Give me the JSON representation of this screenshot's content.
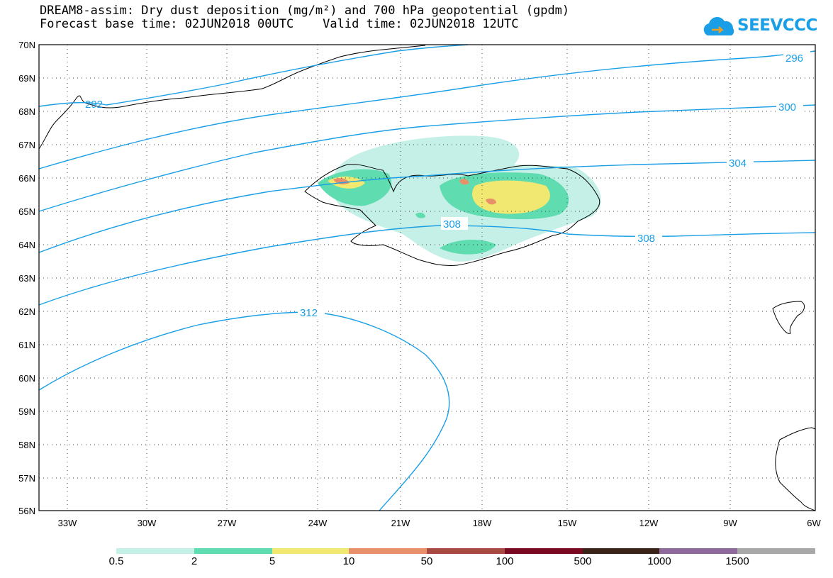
{
  "header": {
    "title_line1": "DREAM8-assim: Dry dust deposition (mg/m²) and 700 hPa geopotential (gpdm)",
    "title_line2": "Forecast base time: 02JUN2018 00UTC    Valid time: 02JUN2018 12UTC"
  },
  "logo": {
    "text": "SEEVCCC",
    "icon": "cloud-icon",
    "color": "#1a9fe6"
  },
  "map": {
    "lat_labels": [
      "70N",
      "69N",
      "68N",
      "67N",
      "66N",
      "65N",
      "64N",
      "63N",
      "62N",
      "61N",
      "60N",
      "59N",
      "58N",
      "57N",
      "56N"
    ],
    "lon_labels": [
      "33W",
      "30W",
      "27W",
      "24W",
      "21W",
      "18W",
      "15W",
      "12W",
      "9W",
      "6W"
    ],
    "contour_labels": [
      "296",
      "300",
      "304",
      "308",
      "308",
      "312",
      "292"
    ],
    "contour_color": "#1a9fe6",
    "coast_color": "#000000"
  },
  "legend": {
    "labels": [
      "0.5",
      "2",
      "5",
      "10",
      "50",
      "100",
      "500",
      "1000",
      "1500"
    ],
    "colors": [
      "#c4f0e8",
      "#5fdcb0",
      "#f0e870",
      "#e8906a",
      "#a84a42",
      "#7a0a22",
      "#3a2418",
      "#8e6a9c",
      "#a8a8a8"
    ]
  }
}
